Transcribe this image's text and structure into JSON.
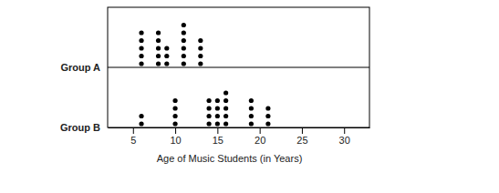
{
  "chart_data": {
    "type": "dot",
    "x_label": "Age of Music Students (in Years)",
    "xlim": [
      2,
      33
    ],
    "xticks": [
      5,
      10,
      15,
      20,
      25,
      30
    ],
    "series": [
      {
        "name": "Group A",
        "color": "#000000",
        "values": [
          6,
          6,
          6,
          6,
          6,
          8,
          8,
          8,
          8,
          8,
          9,
          9,
          9,
          11,
          11,
          11,
          11,
          11,
          11,
          13,
          13,
          13,
          13
        ]
      },
      {
        "name": "Group B",
        "color": "#000000",
        "values": [
          6,
          6,
          10,
          10,
          10,
          10,
          14,
          14,
          14,
          14,
          15,
          15,
          15,
          15,
          16,
          16,
          16,
          16,
          16,
          19,
          19,
          19,
          19,
          21,
          21,
          21
        ]
      }
    ]
  }
}
